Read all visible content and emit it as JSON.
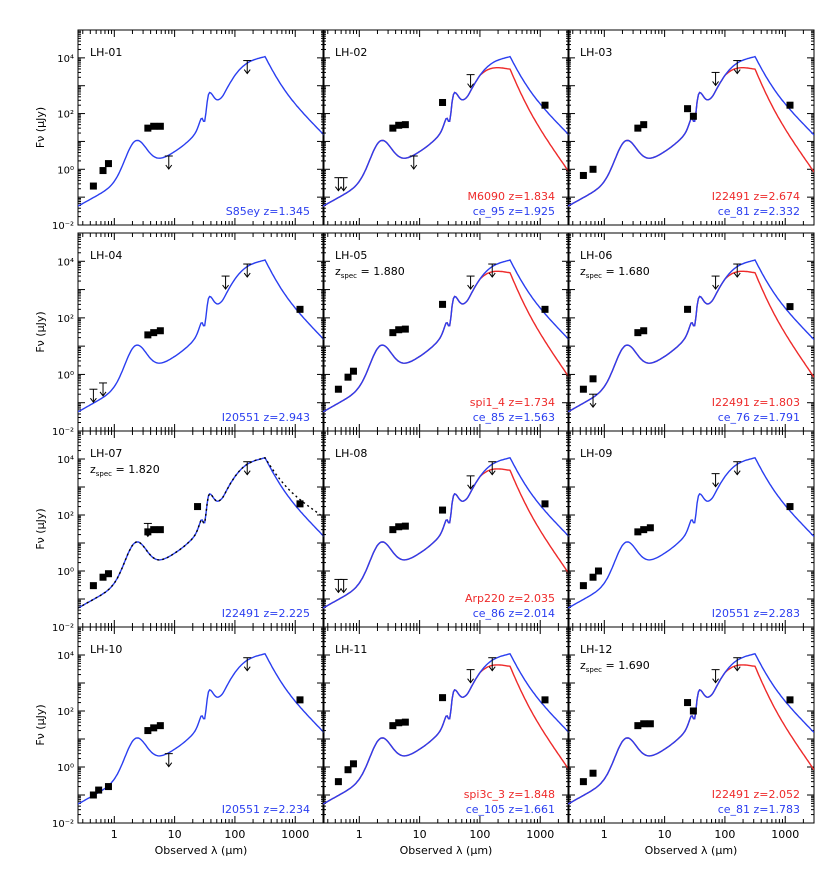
{
  "figure": {
    "xlabel": "Observed λ (μm)",
    "ylabel": "Fν (μJy)",
    "x_tick_labels": [
      "1",
      "10",
      "100",
      "1000"
    ],
    "y_tick_labels": [
      "10⁻²",
      "10⁰",
      "10²",
      "10⁴"
    ],
    "xlim": [
      0.25,
      3000
    ],
    "ylim": [
      0.01,
      100000
    ],
    "xscale": "log",
    "yscale": "log",
    "colors": {
      "blue": "#2a3ef0",
      "red": "#ee2a2a",
      "black": "#000000"
    }
  },
  "chart_data": [
    {
      "type": "line",
      "panel": "LH-01",
      "zspec": null,
      "fits": [
        {
          "label": "S85ey z=1.345",
          "color": "blue",
          "mode": "sb"
        }
      ],
      "photometry": [
        [
          0.45,
          0.25
        ],
        [
          0.65,
          0.9
        ],
        [
          0.8,
          1.6
        ],
        [
          3.6,
          30
        ],
        [
          4.5,
          35
        ],
        [
          5.8,
          35
        ]
      ],
      "upper_limits": [
        [
          8,
          3
        ],
        [
          160,
          8000
        ]
      ]
    },
    {
      "type": "line",
      "panel": "LH-02",
      "zspec": null,
      "fits": [
        {
          "label": "M6090 z=1.834",
          "color": "red",
          "mode": "red"
        },
        {
          "label": "ce_95 z=1.925",
          "color": "blue",
          "mode": "sb"
        }
      ],
      "photometry": [
        [
          3.6,
          30
        ],
        [
          4.5,
          38
        ],
        [
          5.8,
          40
        ],
        [
          24,
          250
        ],
        [
          1200,
          200
        ]
      ],
      "upper_limits": [
        [
          0.45,
          0.5
        ],
        [
          0.55,
          0.5
        ],
        [
          8,
          3
        ],
        [
          70,
          2500
        ]
      ]
    },
    {
      "type": "line",
      "panel": "LH-03",
      "zspec": null,
      "fits": [
        {
          "label": "I22491 z=2.674",
          "color": "red",
          "mode": "red"
        },
        {
          "label": "ce_81 z=2.332",
          "color": "blue",
          "mode": "sb"
        }
      ],
      "photometry": [
        [
          0.45,
          0.6
        ],
        [
          0.65,
          1
        ],
        [
          3.6,
          30
        ],
        [
          4.5,
          40
        ],
        [
          24,
          150
        ],
        [
          30,
          80
        ],
        [
          1200,
          200
        ]
      ],
      "upper_limits": [
        [
          70,
          3000
        ],
        [
          160,
          8000
        ]
      ]
    },
    {
      "type": "line",
      "panel": "LH-04",
      "zspec": null,
      "fits": [
        {
          "label": "I20551 z=2.943",
          "color": "blue",
          "mode": "sb"
        }
      ],
      "photometry": [
        [
          3.6,
          25
        ],
        [
          4.5,
          30
        ],
        [
          5.8,
          35
        ],
        [
          1200,
          200
        ]
      ],
      "upper_limits": [
        [
          0.45,
          0.3
        ],
        [
          0.65,
          0.5
        ],
        [
          70,
          3000
        ],
        [
          160,
          8000
        ]
      ]
    },
    {
      "type": "line",
      "panel": "LH-05",
      "zspec": "1.880",
      "fits": [
        {
          "label": "spi1_4 z=1.734",
          "color": "red",
          "mode": "red"
        },
        {
          "label": "ce_85 z=1.563",
          "color": "blue",
          "mode": "sb"
        }
      ],
      "photometry": [
        [
          0.45,
          0.3
        ],
        [
          0.65,
          0.8
        ],
        [
          0.8,
          1.3
        ],
        [
          3.6,
          30
        ],
        [
          4.5,
          38
        ],
        [
          5.8,
          40
        ],
        [
          24,
          300
        ],
        [
          1200,
          200
        ]
      ],
      "upper_limits": [
        [
          70,
          3000
        ],
        [
          160,
          8000
        ]
      ]
    },
    {
      "type": "line",
      "panel": "LH-06",
      "zspec": "1.680",
      "fits": [
        {
          "label": "I22491 z=1.803",
          "color": "red",
          "mode": "red"
        },
        {
          "label": "ce_76 z=1.791",
          "color": "blue",
          "mode": "sb"
        }
      ],
      "photometry": [
        [
          0.45,
          0.3
        ],
        [
          0.65,
          0.7
        ],
        [
          3.6,
          30
        ],
        [
          4.5,
          35
        ],
        [
          24,
          200
        ],
        [
          1200,
          250
        ]
      ],
      "upper_limits": [
        [
          0.65,
          0.2
        ],
        [
          70,
          3000
        ],
        [
          160,
          8000
        ]
      ]
    },
    {
      "type": "line",
      "panel": "LH-07",
      "zspec": "1.820",
      "fits": [
        {
          "label": "I22491 z=2.225",
          "color": "blue",
          "mode": "sb"
        },
        {
          "label": "",
          "color": "black",
          "mode": "dot"
        }
      ],
      "photometry": [
        [
          0.45,
          0.3
        ],
        [
          0.65,
          0.6
        ],
        [
          0.8,
          0.8
        ],
        [
          3.6,
          25
        ],
        [
          4.5,
          30
        ],
        [
          5.8,
          30
        ],
        [
          24,
          200
        ],
        [
          1200,
          250
        ]
      ],
      "upper_limits": [
        [
          3.6,
          50
        ],
        [
          160,
          8000
        ]
      ]
    },
    {
      "type": "line",
      "panel": "LH-08",
      "zspec": null,
      "fits": [
        {
          "label": "Arp220 z=2.035",
          "color": "red",
          "mode": "red"
        },
        {
          "label": "ce_86 z=2.014",
          "color": "blue",
          "mode": "sb"
        }
      ],
      "photometry": [
        [
          3.6,
          30
        ],
        [
          4.5,
          38
        ],
        [
          5.8,
          40
        ],
        [
          24,
          150
        ],
        [
          1200,
          250
        ]
      ],
      "upper_limits": [
        [
          0.45,
          0.5
        ],
        [
          0.55,
          0.5
        ],
        [
          70,
          2500
        ],
        [
          160,
          8000
        ]
      ]
    },
    {
      "type": "line",
      "panel": "LH-09",
      "zspec": null,
      "fits": [
        {
          "label": "I20551 z=2.283",
          "color": "blue",
          "mode": "sb"
        }
      ],
      "photometry": [
        [
          0.45,
          0.3
        ],
        [
          0.65,
          0.6
        ],
        [
          0.8,
          1
        ],
        [
          3.6,
          25
        ],
        [
          4.5,
          30
        ],
        [
          5.8,
          35
        ],
        [
          1200,
          200
        ]
      ],
      "upper_limits": [
        [
          70,
          3000
        ],
        [
          160,
          8000
        ]
      ]
    },
    {
      "type": "line",
      "panel": "LH-10",
      "zspec": null,
      "fits": [
        {
          "label": "I20551 z=2.234",
          "color": "blue",
          "mode": "sb"
        }
      ],
      "photometry": [
        [
          0.45,
          0.1
        ],
        [
          0.55,
          0.15
        ],
        [
          0.8,
          0.2
        ],
        [
          3.6,
          20
        ],
        [
          4.5,
          25
        ],
        [
          5.8,
          30
        ],
        [
          1200,
          250
        ]
      ],
      "upper_limits": [
        [
          8,
          3
        ],
        [
          160,
          8000
        ]
      ]
    },
    {
      "type": "line",
      "panel": "LH-11",
      "zspec": null,
      "fits": [
        {
          "label": "spi3c_3 z=1.848",
          "color": "red",
          "mode": "red"
        },
        {
          "label": "ce_105 z=1.661",
          "color": "blue",
          "mode": "sb"
        }
      ],
      "photometry": [
        [
          0.45,
          0.3
        ],
        [
          0.65,
          0.8
        ],
        [
          0.8,
          1.3
        ],
        [
          3.6,
          30
        ],
        [
          4.5,
          38
        ],
        [
          5.8,
          40
        ],
        [
          24,
          300
        ],
        [
          1200,
          250
        ]
      ],
      "upper_limits": [
        [
          70,
          3000
        ],
        [
          160,
          8000
        ]
      ]
    },
    {
      "type": "line",
      "panel": "LH-12",
      "zspec": "1.690",
      "fits": [
        {
          "label": "I22491 z=2.052",
          "color": "red",
          "mode": "red"
        },
        {
          "label": "ce_81 z=1.783",
          "color": "blue",
          "mode": "sb"
        }
      ],
      "photometry": [
        [
          0.45,
          0.3
        ],
        [
          0.65,
          0.6
        ],
        [
          3.6,
          30
        ],
        [
          4.5,
          35
        ],
        [
          5.8,
          35
        ],
        [
          24,
          200
        ],
        [
          30,
          100
        ],
        [
          1200,
          250
        ]
      ],
      "upper_limits": [
        [
          70,
          3000
        ],
        [
          160,
          8000
        ]
      ]
    }
  ]
}
